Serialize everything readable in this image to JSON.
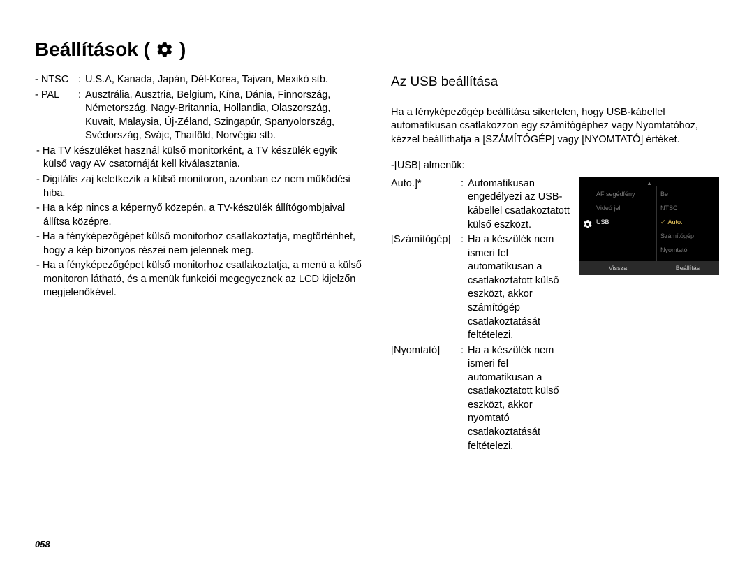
{
  "title": "Beállítások (",
  "title_close": ")",
  "left": {
    "ntsc_key": "- NTSC",
    "ntsc_val": "U.S.A, Kanada, Japán, Dél-Korea, Tajvan, Mexikó stb.",
    "pal_key": "- PAL",
    "pal_val": "Ausztrália, Ausztria, Belgium, Kína, Dánia, Finnország, Németország, Nagy-Britannia, Hollandia, Olaszország, Kuvait, Malaysia, Új-Zéland, Szingapúr, Spanyolország, Svédország, Svájc, Thaiföld, Norvégia stb.",
    "b1": "- Ha TV készüléket használ külső monitorként, a TV készülék egyik külső vagy AV csatornáját kell kiválasztania.",
    "b2": "- Digitális zaj keletkezik a külső monitoron, azonban ez nem működési hiba.",
    "b3": "- Ha a kép nincs a képernyő közepén, a TV-készülék állítógombjaival állítsa középre.",
    "b4": "- Ha a fényképezőgépet külső monitorhoz csatlakoztatja, megtörténhet, hogy a kép bizonyos részei nem jelennek meg.",
    "b5": "- Ha a fényképezőgépet külső monitorhoz csatlakoztatja, a menü a külső monitoron látható, és a menük funkciói megegyeznek az LCD kijelzőn megjelenőkével."
  },
  "right": {
    "section_title": "Az USB beállítása",
    "intro": "Ha a fényképezőgép beállítása sikertelen, hogy USB-kábellel automatikusan csatlakozzon egy számítógéphez vagy Nyomtatóhoz, kézzel beállíthatja a [SZÁMÍTÓGÉP] vagy [NYOMTATÓ] értéket.",
    "submenu_label": "-[USB] almenük:",
    "auto_key": "Auto.]*",
    "auto_val": "Automatikusan engedélyezi az USB-kábellel csatlakoztatott külső eszközt.",
    "comp_key": "[Számítógép]",
    "comp_val": "Ha a készülék nem ismeri fel automatikusan a csatlakoztatott külső eszközt, akkor számítógép csatlakoztatását feltételezi.",
    "print_key": "[Nyomtató]",
    "print_val": "Ha a készülék nem ismeri fel automatikusan a csatlakoztatott külső eszközt, akkor nyomtató csatlakoztatását feltételezi."
  },
  "menu": {
    "rows": [
      {
        "left": "AF segédfény",
        "right": "Be"
      },
      {
        "left": "Videó jel",
        "right": "NTSC"
      },
      {
        "left": "USB",
        "right": "Auto.",
        "left_active": true,
        "right_selected": true,
        "check": true
      },
      {
        "left": "",
        "right": "Számítógép"
      },
      {
        "left": "",
        "right": "Nyomtató"
      }
    ],
    "footer_left": "Vissza",
    "footer_right": "Beállítás",
    "colors": {
      "bg": "#000000",
      "text_dim": "#777777",
      "text_active": "#ffffff",
      "highlight": "#ffd966",
      "footer_bg": "#2a2a2a"
    }
  },
  "page_number": "058"
}
